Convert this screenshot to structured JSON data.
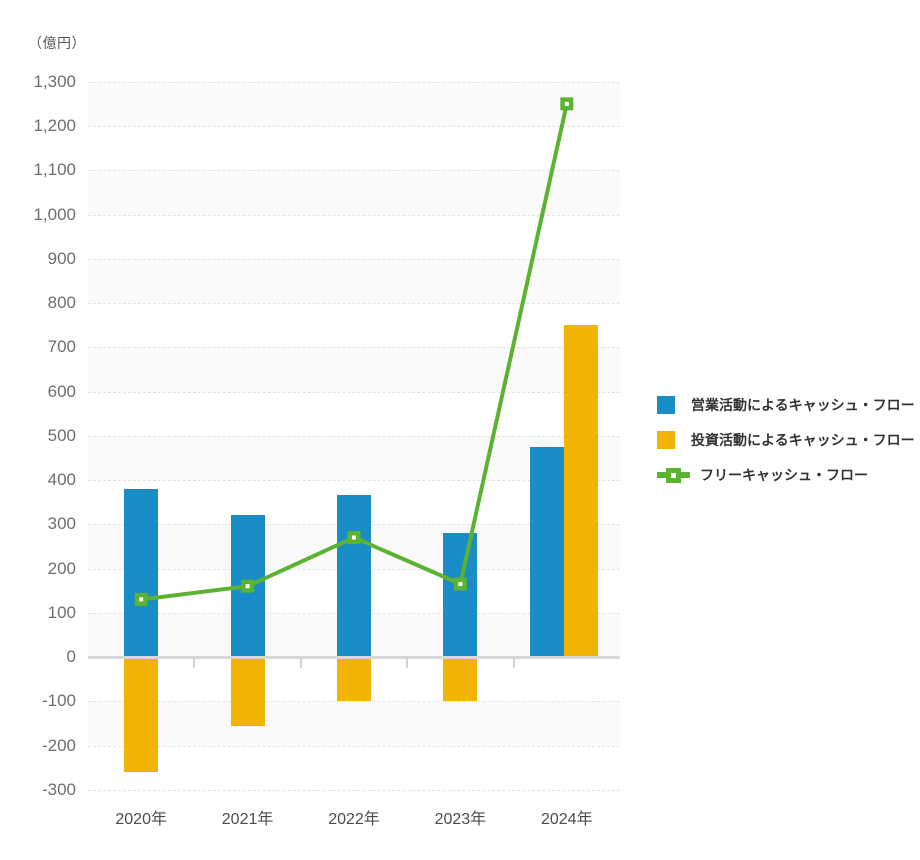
{
  "unit_label": "（億円）",
  "colors": {
    "operating_bar": "#1a8dc7",
    "investing_bar": "#f0b306",
    "fcf_line": "#5cb231",
    "grid": "#e3e3e3",
    "zero_axis": "#d8d8d8"
  },
  "legend": [
    {
      "key": "operating-cf",
      "label": "営業活動によるキャッシュ・フロー",
      "type": "square",
      "color": "#1a8dc7"
    },
    {
      "key": "investing-cf",
      "label": "投資活動によるキャッシュ・フロー",
      "type": "square",
      "color": "#f0b306"
    },
    {
      "key": "free-cf",
      "label": "フリーキャッシュ・フロー",
      "type": "line-marker",
      "color": "#5cb231"
    }
  ],
  "chart_data": {
    "type": "bar",
    "categories": [
      "2020年",
      "2021年",
      "2022年",
      "2023年",
      "2024年"
    ],
    "series": [
      {
        "key": "operating-cf",
        "name": "営業活動によるキャッシュ・フロー",
        "type": "bar",
        "color": "#1a8dc7",
        "values": [
          380,
          320,
          365,
          280,
          475
        ]
      },
      {
        "key": "investing-cf",
        "name": "投資活動によるキャッシュ・フロー",
        "type": "bar",
        "color": "#f0b306",
        "values": [
          -260,
          -155,
          -100,
          -100,
          750
        ]
      },
      {
        "key": "free-cf",
        "name": "フリーキャッシュ・フロー",
        "type": "line",
        "color": "#5cb231",
        "values": [
          130,
          160,
          270,
          165,
          1250
        ]
      }
    ],
    "title": "",
    "xlabel": "",
    "ylabel": "（億円）",
    "ylim": [
      -300,
      1300
    ],
    "ytick_step": 100,
    "grid": true,
    "legend_position": "right"
  }
}
